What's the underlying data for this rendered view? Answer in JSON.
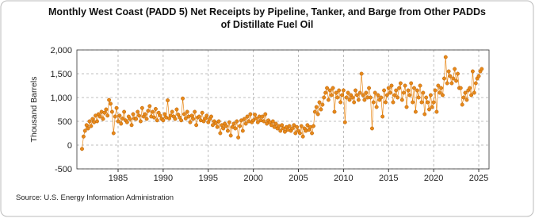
{
  "chart_data": {
    "type": "line",
    "title": "Monthly West Coast (PADD 5) Net Receipts by Pipeline, Tanker, and Barge from Other PADDs",
    "subtitle": "of Distillate Fuel Oil",
    "y_label": "Thousand Barrels",
    "source": "Source: U.S. Energy Information Administration",
    "xlim": [
      1980.43,
      2026.14
    ],
    "xticks": [
      1985,
      1990,
      1995,
      2000,
      2005,
      2010,
      2015,
      2020,
      2025
    ],
    "ylim": [
      -500,
      2000
    ],
    "yticks": [
      -500,
      0,
      {
        "value": 500,
        "label": "500"
      },
      {
        "value": 1000,
        "label": "1,000"
      },
      {
        "value": 1500,
        "label": "1,500"
      },
      {
        "value": 2000,
        "label": "2,000"
      }
    ],
    "grid": true,
    "x": [
      1981,
      1981.17,
      1981.33,
      1981.5,
      1981.67,
      1981.83,
      1982,
      1982.17,
      1982.33,
      1982.5,
      1982.67,
      1982.83,
      1983,
      1983.17,
      1983.33,
      1983.5,
      1983.67,
      1983.83,
      1984,
      1984.17,
      1984.33,
      1984.5,
      1984.67,
      1984.83,
      1985,
      1985.17,
      1985.33,
      1985.5,
      1985.67,
      1985.83,
      1986,
      1986.17,
      1986.33,
      1986.5,
      1986.67,
      1986.83,
      1987,
      1987.17,
      1987.33,
      1987.5,
      1987.67,
      1987.83,
      1988,
      1988.17,
      1988.33,
      1988.5,
      1988.67,
      1988.83,
      1989,
      1989.17,
      1989.33,
      1989.5,
      1989.67,
      1989.83,
      1990,
      1990.17,
      1990.33,
      1990.5,
      1990.67,
      1990.83,
      1991,
      1991.17,
      1991.33,
      1991.5,
      1991.67,
      1991.83,
      1992,
      1992.17,
      1992.33,
      1992.5,
      1992.67,
      1992.83,
      1993,
      1993.17,
      1993.33,
      1993.5,
      1993.67,
      1993.83,
      1994,
      1994.17,
      1994.33,
      1994.5,
      1994.67,
      1994.83,
      1995,
      1995.17,
      1995.33,
      1995.5,
      1995.67,
      1995.83,
      1996,
      1996.17,
      1996.33,
      1996.5,
      1996.67,
      1996.83,
      1997,
      1997.17,
      1997.33,
      1997.5,
      1997.67,
      1997.83,
      1998,
      1998.17,
      1998.33,
      1998.5,
      1998.67,
      1998.83,
      1999,
      1999.17,
      1999.33,
      1999.5,
      1999.67,
      1999.83,
      2000,
      2000.17,
      2000.33,
      2000.5,
      2000.67,
      2000.83,
      2001,
      2001.17,
      2001.33,
      2001.5,
      2001.67,
      2001.83,
      2002,
      2002.17,
      2002.33,
      2002.5,
      2002.67,
      2002.83,
      2003,
      2003.17,
      2003.33,
      2003.5,
      2003.67,
      2003.83,
      2004,
      2004.17,
      2004.33,
      2004.5,
      2004.67,
      2004.83,
      2005,
      2005.17,
      2005.33,
      2005.5,
      2005.67,
      2005.83,
      2006,
      2006.17,
      2006.33,
      2006.5,
      2006.67,
      2006.83,
      2007,
      2007.17,
      2007.33,
      2007.5,
      2007.67,
      2007.83,
      2008,
      2008.17,
      2008.33,
      2008.5,
      2008.67,
      2008.83,
      2009,
      2009.17,
      2009.33,
      2009.5,
      2009.67,
      2009.83,
      2010,
      2010.17,
      2010.33,
      2010.5,
      2010.67,
      2010.83,
      2011,
      2011.17,
      2011.33,
      2011.5,
      2011.67,
      2011.83,
      2012,
      2012.17,
      2012.33,
      2012.5,
      2012.67,
      2012.83,
      2013,
      2013.17,
      2013.33,
      2013.5,
      2013.67,
      2013.83,
      2014,
      2014.17,
      2014.33,
      2014.5,
      2014.67,
      2014.83,
      2015,
      2015.17,
      2015.33,
      2015.5,
      2015.67,
      2015.83,
      2016,
      2016.17,
      2016.33,
      2016.5,
      2016.67,
      2016.83,
      2017,
      2017.17,
      2017.33,
      2017.5,
      2017.67,
      2017.83,
      2018,
      2018.17,
      2018.33,
      2018.5,
      2018.67,
      2018.83,
      2019,
      2019.17,
      2019.33,
      2019.5,
      2019.67,
      2019.83,
      2020,
      2020.17,
      2020.33,
      2020.5,
      2020.67,
      2020.83,
      2021,
      2021.17,
      2021.33,
      2021.5,
      2021.67,
      2021.83,
      2022,
      2022.17,
      2022.33,
      2022.5,
      2022.67,
      2022.83,
      2023,
      2023.17,
      2023.33,
      2023.5,
      2023.67,
      2023.83,
      2024,
      2024.17,
      2024.33,
      2024.5,
      2024.67,
      2024.83,
      2025,
      2025.17,
      2025.33
    ],
    "series": [
      {
        "color": "#e8891a",
        "values": [
          -80,
          180,
          300,
          420,
          350,
          500,
          400,
          550,
          480,
          620,
          500,
          650,
          600,
          700,
          550,
          680,
          750,
          620,
          950,
          870,
          700,
          250,
          600,
          780,
          500,
          620,
          450,
          560,
          700,
          520,
          480,
          600,
          550,
          420,
          650,
          560,
          550,
          700,
          620,
          500,
          780,
          600,
          650,
          550,
          720,
          820,
          600,
          700,
          580,
          760,
          520,
          680,
          620,
          550,
          520,
          650,
          580,
          940,
          560,
          620,
          700,
          600,
          550,
          750,
          640,
          580,
          520,
          980,
          650,
          560,
          700,
          600,
          480,
          620,
          550,
          700,
          420,
          580,
          600,
          520,
          680,
          500,
          560,
          620,
          480,
          550,
          600,
          420,
          500,
          460,
          380,
          500,
          250,
          420,
          350,
          450,
          400,
          300,
          480,
          200,
          380,
          450,
          350,
          500,
          160,
          400,
          520,
          300,
          550,
          450,
          600,
          500,
          650,
          480,
          520,
          640,
          560,
          480,
          600,
          520,
          600,
          500,
          650,
          450,
          520,
          480,
          420,
          500,
          380,
          450,
          350,
          400,
          300,
          420,
          350,
          280,
          380,
          320,
          400,
          300,
          350,
          420,
          250,
          380,
          300,
          250,
          400,
          180,
          350,
          300,
          420,
          320,
          380,
          250,
          400,
          700,
          800,
          650,
          900,
          750,
          850,
          1000,
          1100,
          1200,
          950,
          1150,
          1050,
          1200,
          700,
          1100,
          1000,
          1150,
          900,
          1050,
          1150,
          480,
          1000,
          1100,
          950,
          1050,
          1000,
          900,
          1150,
          1050,
          950,
          1100,
          1500,
          1050,
          950,
          1100,
          1000,
          1200,
          1000,
          350,
          900,
          1100,
          800,
          1050,
          950,
          1000,
          600,
          1150,
          900,
          1050,
          1200,
          1100,
          1250,
          900,
          1050,
          1150,
          1000,
          1200,
          1300,
          950,
          1100,
          1250,
          800,
          1150,
          1050,
          1300,
          900,
          1200,
          700,
          1150,
          1000,
          1250,
          900,
          1100,
          650,
          1000,
          900,
          750,
          1050,
          800,
          900,
          1150,
          700,
          1250,
          1100,
          1200,
          1050,
          1400,
          1850,
          1300,
          1550,
          1450,
          1300,
          1400,
          1600,
          1350,
          1500,
          1200,
          1200,
          850,
          1000,
          1100,
          950,
          1150,
          1200,
          1050,
          1550,
          1100,
          1300,
          1400,
          1450,
          1550,
          1600
        ]
      }
    ]
  }
}
